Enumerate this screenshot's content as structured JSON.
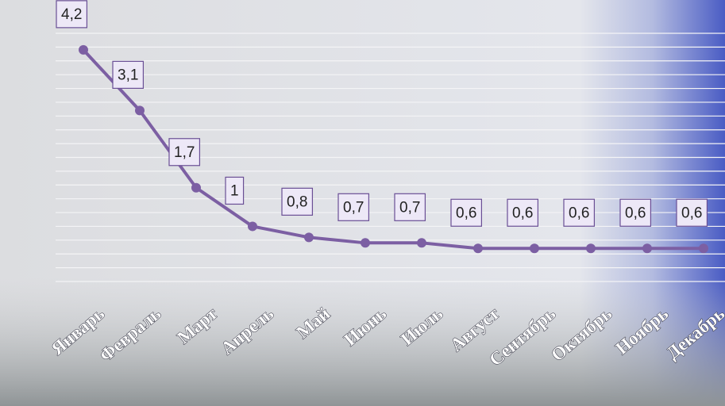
{
  "chart_data": {
    "type": "line",
    "categories": [
      "Январь",
      "Февраль",
      "Март",
      "Апрель",
      "Май",
      "Июнь",
      "Июль",
      "Август",
      "Сентябрь",
      "Октябрь",
      "Ноябрь",
      "Декабрь"
    ],
    "series": [
      {
        "color": "#7c5fa3",
        "values": [
          4.2,
          3.1,
          1.7,
          1,
          0.8,
          0.7,
          0.7,
          0.6,
          0.6,
          0.6,
          0.6,
          0.6
        ],
        "value_labels": [
          "4,2",
          "3,1",
          "1,7",
          "1",
          "0,8",
          "0,7",
          "0,7",
          "0,6",
          "0,6",
          "0,6",
          "0,6",
          "0,6"
        ]
      }
    ],
    "ylim": [
      0,
      4.5
    ],
    "yticks": [
      0,
      0.25,
      0.5,
      0.75,
      1,
      1.25,
      1.5,
      1.75,
      2,
      2.25,
      2.5,
      2.75,
      3,
      3.25,
      3.5,
      3.75,
      4,
      4.25,
      4.5
    ],
    "grid": true
  }
}
